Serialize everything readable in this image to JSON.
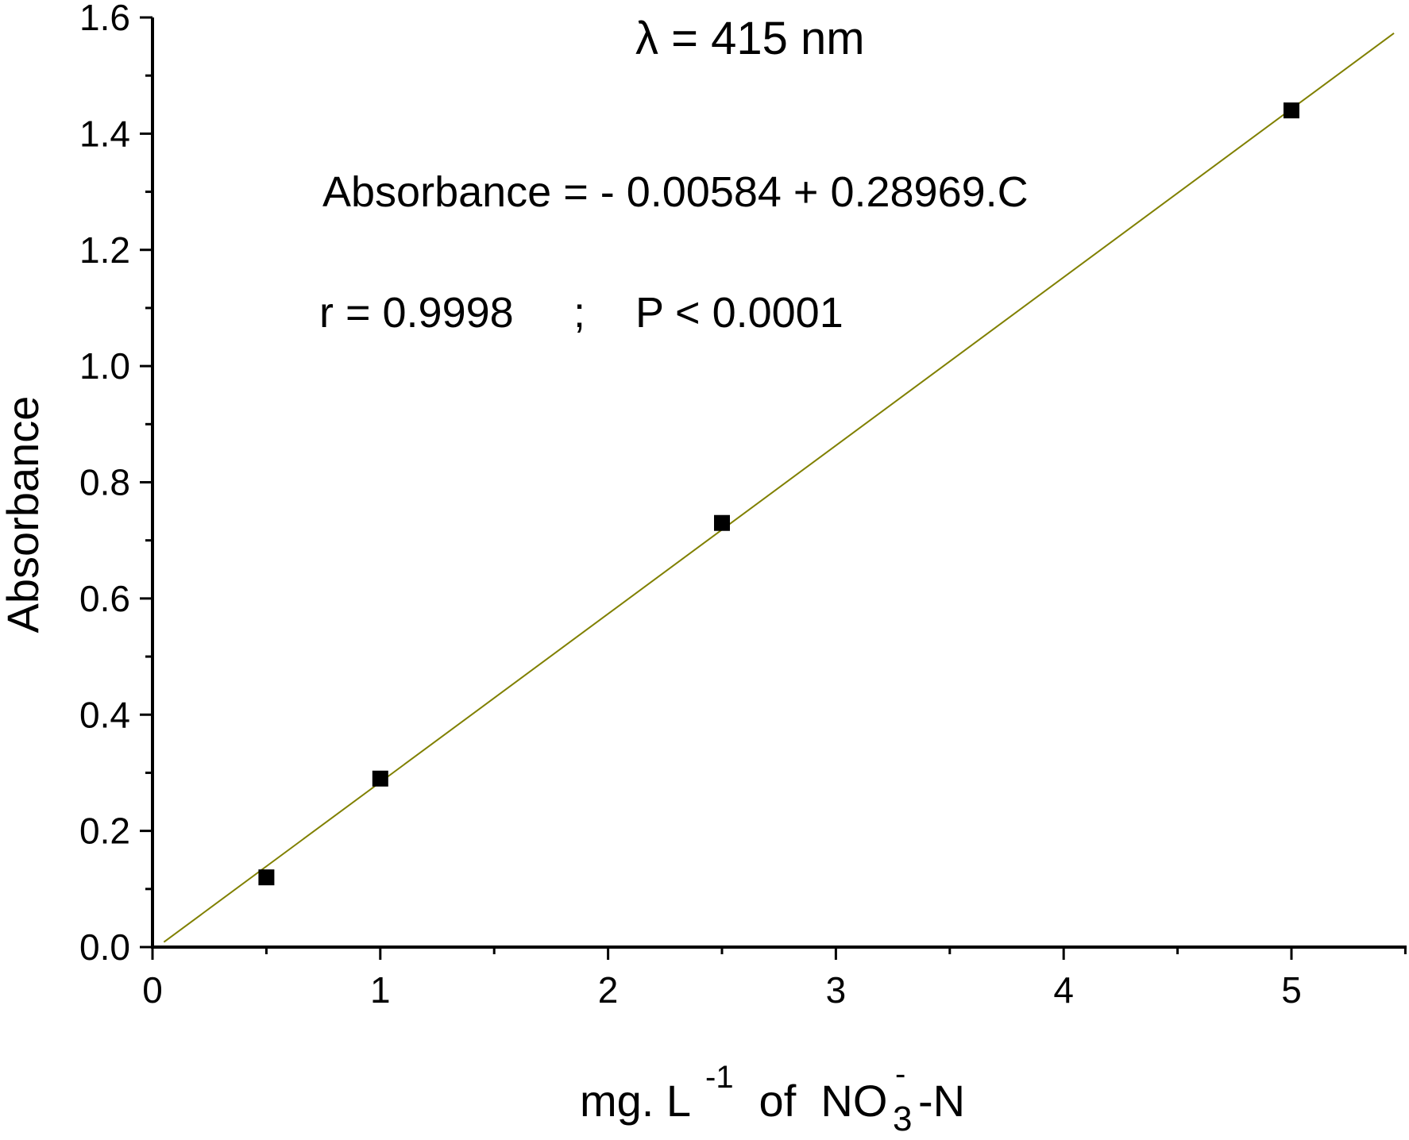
{
  "chart_data": {
    "type": "scatter",
    "title": "",
    "x": [
      0.5,
      1,
      2.5,
      5
    ],
    "y": [
      0.12,
      0.29,
      0.73,
      1.44
    ],
    "series": [
      {
        "values": [
          0.12,
          0.29,
          0.73,
          1.44
        ],
        "marker": "square",
        "color": "#000000"
      }
    ],
    "fit_line": {
      "intercept": -0.00584,
      "slope": 0.28969,
      "x_range": [
        0.05,
        5.45
      ],
      "color": "#808000"
    },
    "xlim": [
      0,
      5.5
    ],
    "ylim": [
      0,
      1.6
    ],
    "x_ticks": [
      0,
      1,
      2,
      3,
      4,
      5
    ],
    "x_tick_labels": [
      "0",
      "1",
      "2",
      "3",
      "4",
      "5"
    ],
    "y_ticks": [
      0,
      0.2,
      0.4,
      0.6,
      0.8,
      1.0,
      1.2,
      1.4,
      1.6
    ],
    "y_tick_labels": [
      "0.0",
      "0.2",
      "0.4",
      "0.6",
      "0.8",
      "1.0",
      "1.2",
      "1.4",
      "1.6"
    ],
    "ylabel": "Absorbance",
    "xlabel": {
      "prefix": "mg. L",
      "exponent": "-1",
      "middle": " of  NO",
      "superscript": "-",
      "subscript": "3",
      "suffix": "-N"
    },
    "annotations": {
      "wavelength": "λ = 415 nm",
      "equation": "Absorbance = - 0.00584  +  0.28969.C",
      "correlation": "r = 0.9998",
      "separator": ";",
      "pvalue": "P < 0.0001"
    },
    "grid": false,
    "legend": "none"
  }
}
